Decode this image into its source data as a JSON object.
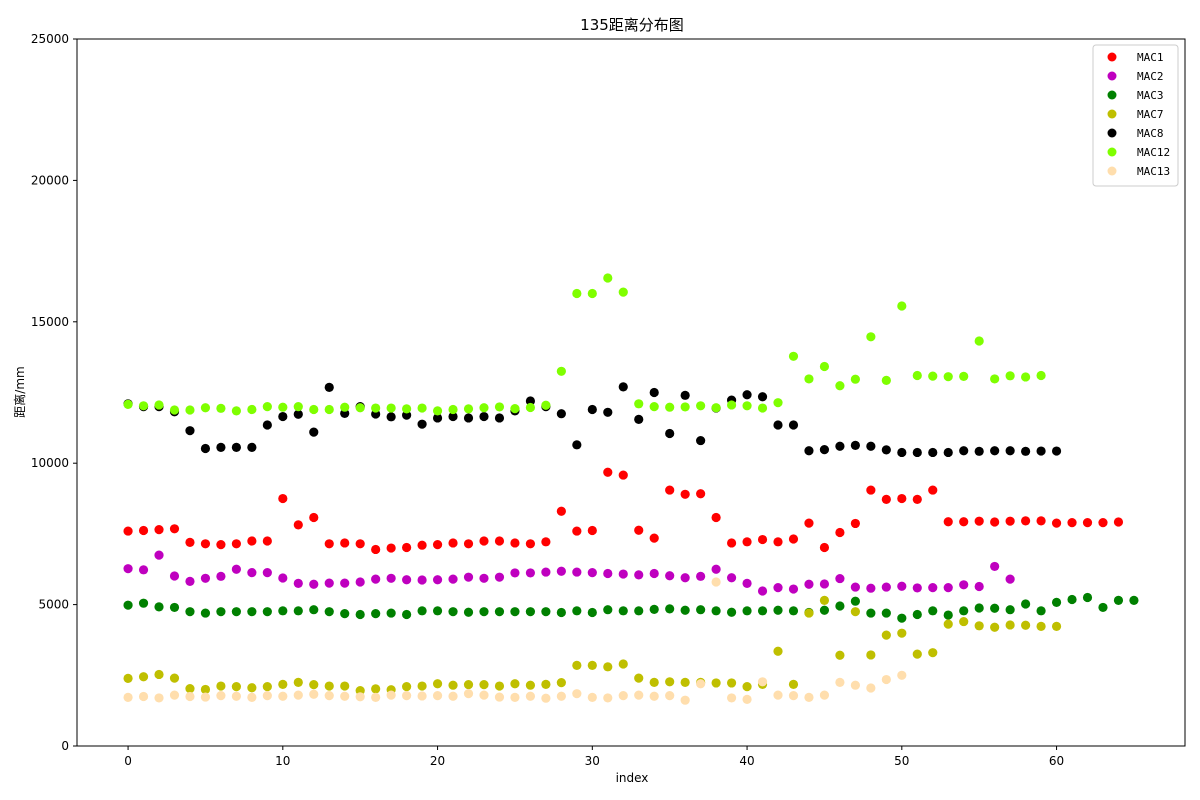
{
  "chart_data": {
    "type": "scatter",
    "title": "135距离分布图",
    "xlabel": "index",
    "ylabel": "距离/mm",
    "xlim": [
      -3.3,
      68.3
    ],
    "ylim": [
      0,
      25000
    ],
    "xticks": [
      0,
      10,
      20,
      30,
      40,
      50,
      60
    ],
    "yticks": [
      0,
      5000,
      10000,
      15000,
      20000,
      25000
    ],
    "grid": false,
    "legend_position": "top-right",
    "series": [
      {
        "name": "MAC1",
        "color": "#ff0000",
        "y": [
          7600,
          7620,
          7650,
          7680,
          7200,
          7150,
          7120,
          7150,
          7250,
          7250,
          8750,
          7820,
          8080,
          7150,
          7180,
          7150,
          6950,
          7000,
          7020,
          7100,
          7120,
          7180,
          7150,
          7250,
          7250,
          7180,
          7150,
          7220,
          8300,
          7600,
          7620,
          9680,
          9580,
          7630,
          7350,
          9050,
          8900,
          8920,
          8080,
          7180,
          7220,
          7300,
          7220,
          7320,
          7880,
          7020,
          7550,
          7870,
          9050,
          8720,
          8750,
          8720,
          9050,
          7930,
          7930,
          7950,
          7920,
          7950,
          7960,
          7960,
          7880,
          7900,
          7900,
          7900,
          7920
        ]
      },
      {
        "name": "MAC2",
        "color": "#bf00bf",
        "y": [
          6270,
          6230,
          6750,
          6010,
          5820,
          5930,
          6000,
          6250,
          6130,
          6130,
          5940,
          5750,
          5720,
          5760,
          5760,
          5800,
          5900,
          5930,
          5880,
          5870,
          5880,
          5900,
          5970,
          5930,
          5970,
          6120,
          6120,
          6150,
          6180,
          6150,
          6130,
          6100,
          6080,
          6050,
          6100,
          6020,
          5950,
          6000,
          6250,
          5950,
          5750,
          5480,
          5600,
          5550,
          5720,
          5730,
          5920,
          5620,
          5580,
          5620,
          5650,
          5590,
          5600,
          5600,
          5700,
          5640,
          6350,
          5900
        ]
      },
      {
        "name": "MAC3",
        "color": "#008000",
        "y": [
          4980,
          5050,
          4920,
          4900,
          4750,
          4700,
          4750,
          4750,
          4750,
          4750,
          4780,
          4780,
          4820,
          4750,
          4680,
          4650,
          4680,
          4700,
          4650,
          4780,
          4780,
          4750,
          4730,
          4750,
          4750,
          4750,
          4750,
          4750,
          4720,
          4780,
          4720,
          4820,
          4780,
          4780,
          4830,
          4850,
          4800,
          4820,
          4780,
          4730,
          4780,
          4780,
          4800,
          4780,
          4720,
          4800,
          4950,
          5120,
          4700,
          4700,
          4520,
          4650,
          4780,
          4630,
          4780,
          4880,
          4870,
          4820,
          5020,
          4780,
          5080,
          5180,
          5250,
          4900,
          5150,
          5150
        ]
      },
      {
        "name": "MAC7",
        "color": "#bfbf00",
        "y": [
          2390,
          2450,
          2530,
          2400,
          2030,
          2000,
          2120,
          2100,
          2060,
          2100,
          2180,
          2250,
          2170,
          2120,
          2120,
          1960,
          2020,
          1990,
          2100,
          2120,
          2200,
          2150,
          2170,
          2170,
          2120,
          2200,
          2150,
          2180,
          2240,
          2850,
          2850,
          2800,
          2900,
          2400,
          2250,
          2270,
          2250,
          2250,
          2230,
          2230,
          2100,
          2180,
          3350,
          2180,
          4700,
          5150,
          3210,
          4750,
          3220,
          3920,
          3990,
          3250,
          3300,
          4310,
          4400,
          4250,
          4200,
          4280,
          4270,
          4230,
          4230
        ]
      },
      {
        "name": "MAC8",
        "color": "#000000",
        "y": [
          12100,
          12000,
          12000,
          11820,
          11150,
          10520,
          10560,
          10560,
          10560,
          11350,
          11650,
          11730,
          11100,
          12680,
          11760,
          12000,
          11740,
          11640,
          11700,
          11380,
          11600,
          11650,
          11600,
          11650,
          11600,
          11850,
          12200,
          12000,
          11750,
          10650,
          11900,
          11800,
          12700,
          11550,
          12500,
          11050,
          12400,
          10800,
          11950,
          12230,
          12420,
          12350,
          11350,
          11350,
          10440,
          10480,
          10600,
          10630,
          10600,
          10470,
          10380,
          10380,
          10380,
          10380,
          10440,
          10420,
          10440,
          10440,
          10420,
          10430,
          10430
        ]
      },
      {
        "name": "MAC12",
        "color": "#7fff00",
        "y": [
          12080,
          12030,
          12060,
          11880,
          11880,
          11960,
          11940,
          11850,
          11900,
          12000,
          11980,
          12000,
          11900,
          11900,
          11980,
          11960,
          11950,
          11950,
          11920,
          11950,
          11850,
          11900,
          11920,
          11960,
          11990,
          11930,
          11970,
          12050,
          13250,
          16000,
          16000,
          16550,
          16050,
          12100,
          12000,
          11980,
          11990,
          12030,
          11960,
          12060,
          12030,
          11950,
          12140,
          13780,
          12980,
          13420,
          12740,
          12970,
          14470,
          12930,
          15560,
          13100,
          13080,
          13060,
          13070,
          14320,
          12980,
          13090,
          13050,
          13100
        ]
      },
      {
        "name": "MAC13",
        "color": "#ffdead",
        "y": [
          1720,
          1750,
          1700,
          1800,
          1750,
          1730,
          1780,
          1760,
          1720,
          1780,
          1760,
          1800,
          1830,
          1780,
          1760,
          1740,
          1720,
          1800,
          1780,
          1770,
          1780,
          1760,
          1850,
          1800,
          1730,
          1720,
          1760,
          1690,
          1760,
          1850,
          1720,
          1700,
          1780,
          1800,
          1760,
          1780,
          1620,
          2200,
          5800,
          1700,
          1650,
          2270,
          1800,
          1780,
          1720,
          1800,
          2250,
          2150,
          2050,
          2350,
          2500
        ]
      }
    ]
  }
}
